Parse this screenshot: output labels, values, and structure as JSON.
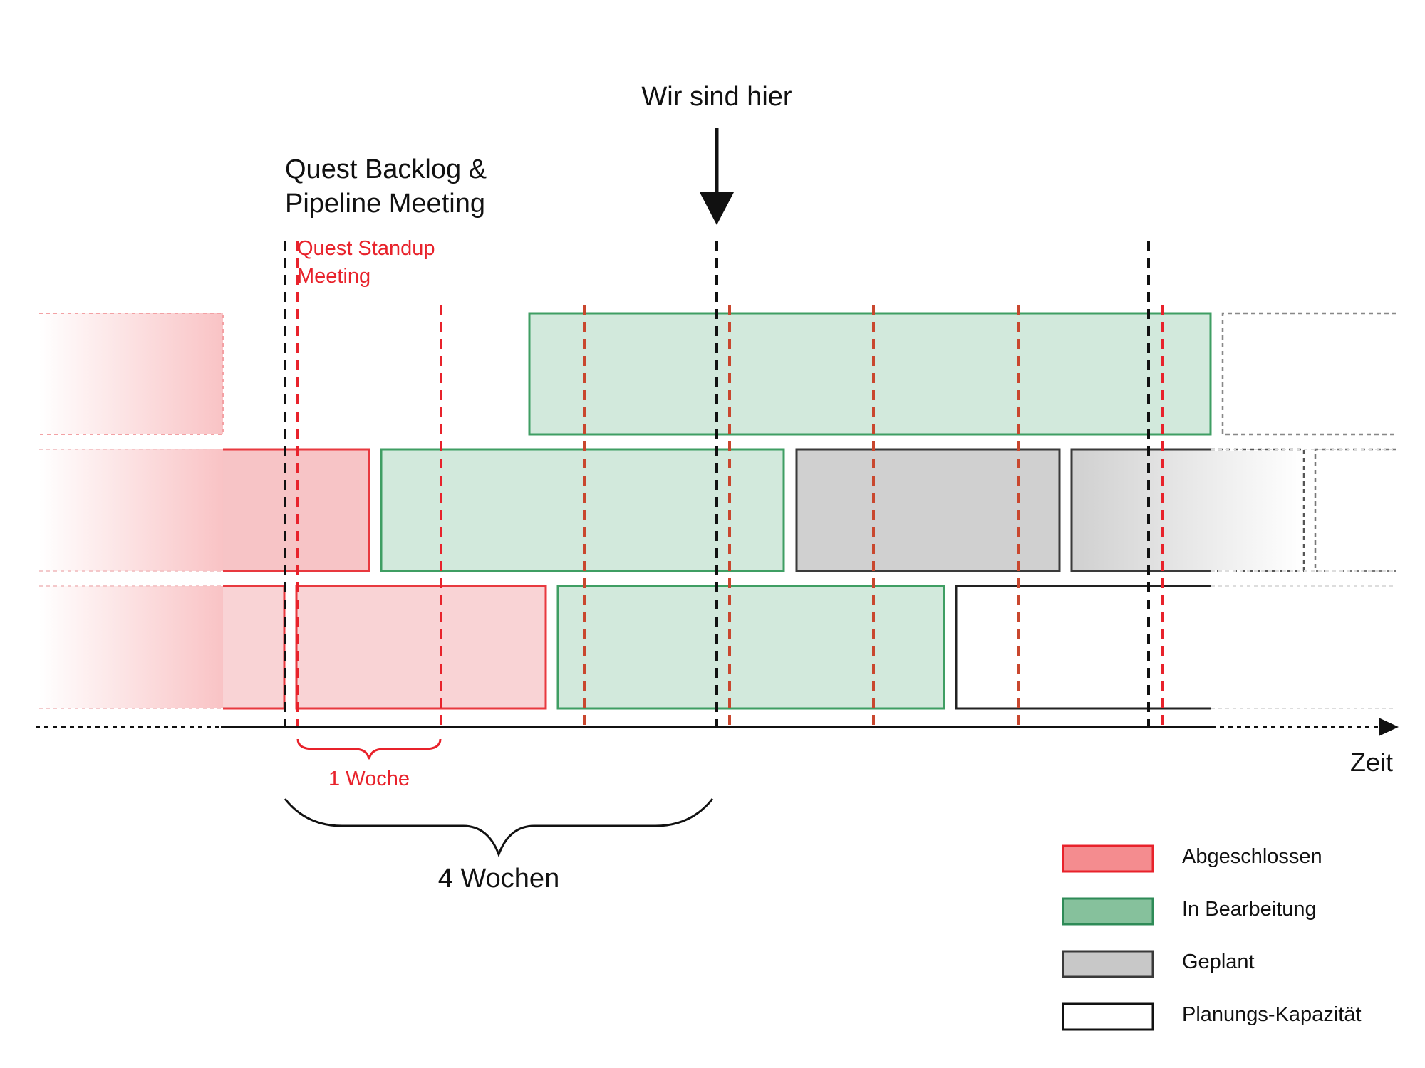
{
  "labels": {
    "here": "Wir sind hier",
    "meeting_line1": "Quest Backlog &",
    "meeting_line2": "Pipeline Meeting",
    "standup_line1": "Quest Standup",
    "standup_line2": "Meeting",
    "one_week": "1 Woche",
    "four_weeks": "4 Wochen",
    "time_axis": "Zeit"
  },
  "legend": [
    {
      "label": "Abgeschlossen",
      "fill": "#f48c8f",
      "stroke": "#e8222b"
    },
    {
      "label": "In Bearbeitung",
      "fill": "#86c19c",
      "stroke": "#2e8b57"
    },
    {
      "label": "Geplant",
      "fill": "#c8c8c8",
      "stroke": "#3a3a3a"
    },
    {
      "label": "Planungs-Kapazität",
      "fill": "#ffffff",
      "stroke": "#111111"
    }
  ],
  "colors": {
    "done_fill": "#f9c3c5",
    "done_stroke": "#e8393f",
    "progress_fill": "#d2e9dc",
    "progress_stroke": "#3f9e63",
    "planned_fill": "#d0d0d0",
    "planned_stroke": "#3a3a3a",
    "capacity_stroke": "#222222",
    "meeting_line": "#111111",
    "standup_line": "#e8222b"
  }
}
